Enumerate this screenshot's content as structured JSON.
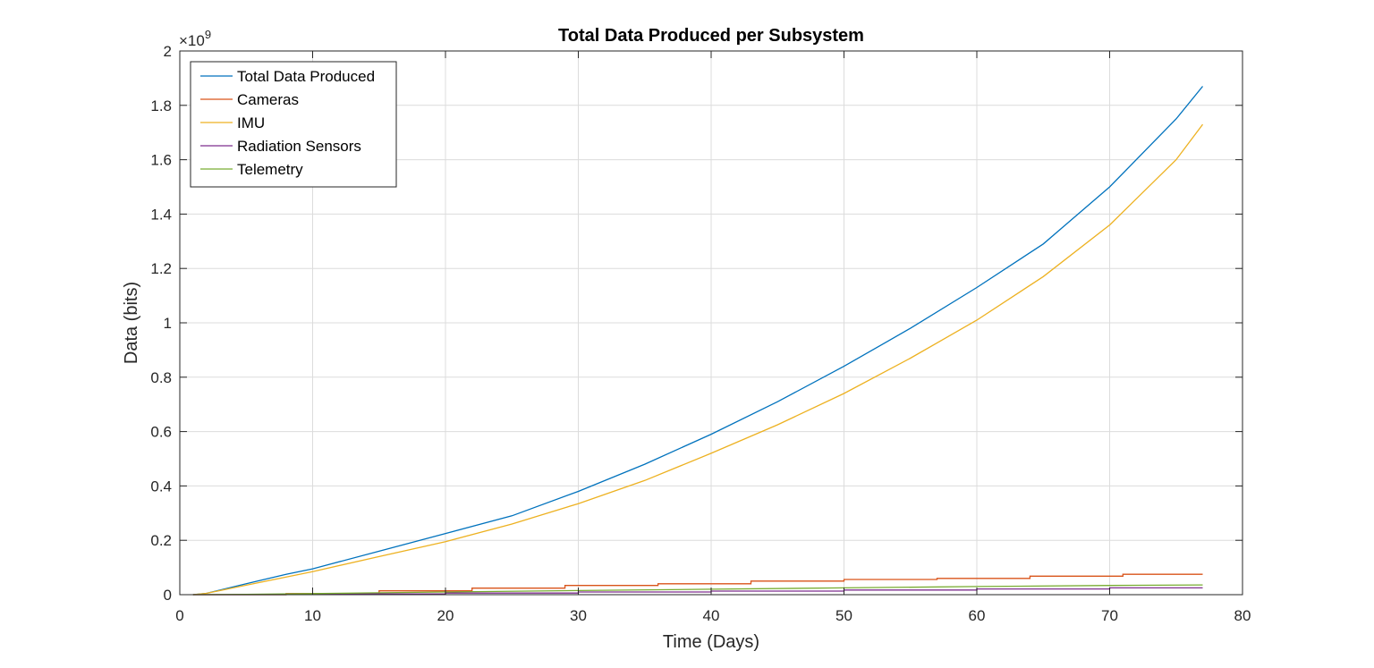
{
  "chart_data": {
    "type": "line",
    "title": "Total Data Produced per Subsystem",
    "xlabel": "Time (Days)",
    "ylabel": "Data (bits)",
    "xlim": [
      0,
      80
    ],
    "ylim": [
      0,
      2
    ],
    "y_multiplier": {
      "base": "×10",
      "exponent": "9"
    },
    "x_ticks": [
      "0",
      "10",
      "20",
      "30",
      "40",
      "50",
      "60",
      "70",
      "80"
    ],
    "y_ticks": [
      "0",
      "0.2",
      "0.4",
      "0.6",
      "0.8",
      "1",
      "1.2",
      "1.4",
      "1.6",
      "1.8",
      "2"
    ],
    "grid": true,
    "legend_position": "top-left",
    "series": [
      {
        "name": "Total Data Produced",
        "color": "#0072BD",
        "x": [
          1,
          2,
          5,
          8,
          10,
          15,
          20,
          25,
          30,
          35,
          40,
          45,
          50,
          55,
          60,
          65,
          70,
          75,
          77
        ],
        "y": [
          0,
          0.005,
          0.04,
          0.075,
          0.095,
          0.16,
          0.225,
          0.29,
          0.38,
          0.48,
          0.59,
          0.71,
          0.84,
          0.98,
          1.13,
          1.29,
          1.5,
          1.75,
          1.87
        ]
      },
      {
        "name": "Cameras",
        "color": "#D95319",
        "x": [
          1,
          8,
          8,
          15,
          15,
          22,
          22,
          29,
          29,
          36,
          36,
          43,
          43,
          50,
          50,
          57,
          57,
          64,
          64,
          71,
          71,
          77
        ],
        "y": [
          0,
          0,
          0.004,
          0.004,
          0.014,
          0.014,
          0.024,
          0.024,
          0.034,
          0.034,
          0.04,
          0.04,
          0.05,
          0.05,
          0.056,
          0.056,
          0.06,
          0.06,
          0.068,
          0.068,
          0.075,
          0.075
        ]
      },
      {
        "name": "IMU",
        "color": "#EDB120",
        "x": [
          1,
          2,
          5,
          10,
          15,
          20,
          25,
          30,
          35,
          40,
          45,
          50,
          55,
          60,
          65,
          70,
          75,
          77
        ],
        "y": [
          0,
          0.005,
          0.035,
          0.085,
          0.14,
          0.195,
          0.26,
          0.335,
          0.42,
          0.52,
          0.625,
          0.74,
          0.87,
          1.01,
          1.17,
          1.36,
          1.6,
          1.73
        ]
      },
      {
        "name": "Radiation Sensors",
        "color": "#7E2F8E",
        "x": [
          1,
          8,
          8,
          20,
          20,
          30,
          30,
          40,
          40,
          50,
          50,
          60,
          60,
          70,
          70,
          77
        ],
        "y": [
          0,
          0,
          0.003,
          0.003,
          0.006,
          0.006,
          0.01,
          0.01,
          0.013,
          0.013,
          0.017,
          0.017,
          0.021,
          0.021,
          0.025,
          0.025
        ]
      },
      {
        "name": "Telemetry",
        "color": "#77AC30",
        "x": [
          1,
          5,
          10,
          15,
          20,
          30,
          40,
          50,
          60,
          70,
          77
        ],
        "y": [
          0,
          0.001,
          0.004,
          0.007,
          0.01,
          0.015,
          0.02,
          0.025,
          0.03,
          0.034,
          0.036
        ]
      }
    ]
  }
}
